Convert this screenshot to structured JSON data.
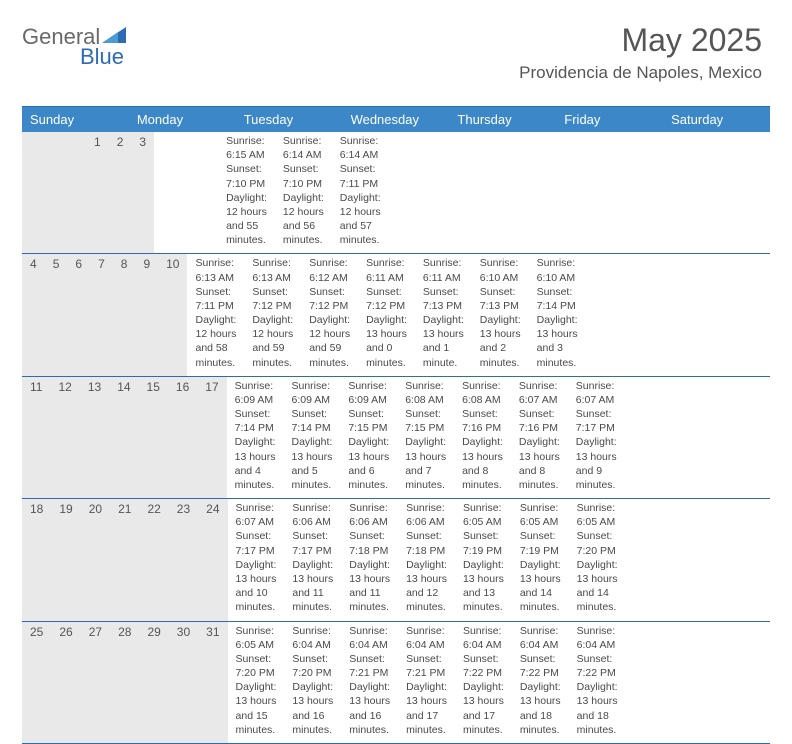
{
  "logo": {
    "text1": "General",
    "text2": "Blue"
  },
  "title": {
    "month": "May 2025",
    "location": "Providencia de Napoles, Mexico"
  },
  "colors": {
    "header_bg": "#3c87c8",
    "header_text": "#ffffff",
    "daynum_bg": "#e9e9e9",
    "border": "#2d6bb5",
    "logo_gray": "#6a6a6a",
    "logo_blue": "#2d6bb5",
    "text_gray": "#555555",
    "details_text": "#4a4a4a",
    "background": "#ffffff"
  },
  "typography": {
    "month_fontsize": 32,
    "location_fontsize": 17,
    "logo_fontsize": 22,
    "dayheader_fontsize": 13,
    "daynum_fontsize": 12,
    "details_fontsize": 10.5
  },
  "dayHeaders": [
    "Sunday",
    "Monday",
    "Tuesday",
    "Wednesday",
    "Thursday",
    "Friday",
    "Saturday"
  ],
  "weeks": [
    [
      {
        "n": "",
        "sunrise": "",
        "sunset": "",
        "daylight": ""
      },
      {
        "n": "",
        "sunrise": "",
        "sunset": "",
        "daylight": ""
      },
      {
        "n": "",
        "sunrise": "",
        "sunset": "",
        "daylight": ""
      },
      {
        "n": "",
        "sunrise": "",
        "sunset": "",
        "daylight": ""
      },
      {
        "n": "1",
        "sunrise": "Sunrise: 6:15 AM",
        "sunset": "Sunset: 7:10 PM",
        "daylight": "Daylight: 12 hours and 55 minutes."
      },
      {
        "n": "2",
        "sunrise": "Sunrise: 6:14 AM",
        "sunset": "Sunset: 7:10 PM",
        "daylight": "Daylight: 12 hours and 56 minutes."
      },
      {
        "n": "3",
        "sunrise": "Sunrise: 6:14 AM",
        "sunset": "Sunset: 7:11 PM",
        "daylight": "Daylight: 12 hours and 57 minutes."
      }
    ],
    [
      {
        "n": "4",
        "sunrise": "Sunrise: 6:13 AM",
        "sunset": "Sunset: 7:11 PM",
        "daylight": "Daylight: 12 hours and 58 minutes."
      },
      {
        "n": "5",
        "sunrise": "Sunrise: 6:13 AM",
        "sunset": "Sunset: 7:12 PM",
        "daylight": "Daylight: 12 hours and 59 minutes."
      },
      {
        "n": "6",
        "sunrise": "Sunrise: 6:12 AM",
        "sunset": "Sunset: 7:12 PM",
        "daylight": "Daylight: 12 hours and 59 minutes."
      },
      {
        "n": "7",
        "sunrise": "Sunrise: 6:11 AM",
        "sunset": "Sunset: 7:12 PM",
        "daylight": "Daylight: 13 hours and 0 minutes."
      },
      {
        "n": "8",
        "sunrise": "Sunrise: 6:11 AM",
        "sunset": "Sunset: 7:13 PM",
        "daylight": "Daylight: 13 hours and 1 minute."
      },
      {
        "n": "9",
        "sunrise": "Sunrise: 6:10 AM",
        "sunset": "Sunset: 7:13 PM",
        "daylight": "Daylight: 13 hours and 2 minutes."
      },
      {
        "n": "10",
        "sunrise": "Sunrise: 6:10 AM",
        "sunset": "Sunset: 7:14 PM",
        "daylight": "Daylight: 13 hours and 3 minutes."
      }
    ],
    [
      {
        "n": "11",
        "sunrise": "Sunrise: 6:09 AM",
        "sunset": "Sunset: 7:14 PM",
        "daylight": "Daylight: 13 hours and 4 minutes."
      },
      {
        "n": "12",
        "sunrise": "Sunrise: 6:09 AM",
        "sunset": "Sunset: 7:14 PM",
        "daylight": "Daylight: 13 hours and 5 minutes."
      },
      {
        "n": "13",
        "sunrise": "Sunrise: 6:09 AM",
        "sunset": "Sunset: 7:15 PM",
        "daylight": "Daylight: 13 hours and 6 minutes."
      },
      {
        "n": "14",
        "sunrise": "Sunrise: 6:08 AM",
        "sunset": "Sunset: 7:15 PM",
        "daylight": "Daylight: 13 hours and 7 minutes."
      },
      {
        "n": "15",
        "sunrise": "Sunrise: 6:08 AM",
        "sunset": "Sunset: 7:16 PM",
        "daylight": "Daylight: 13 hours and 8 minutes."
      },
      {
        "n": "16",
        "sunrise": "Sunrise: 6:07 AM",
        "sunset": "Sunset: 7:16 PM",
        "daylight": "Daylight: 13 hours and 8 minutes."
      },
      {
        "n": "17",
        "sunrise": "Sunrise: 6:07 AM",
        "sunset": "Sunset: 7:17 PM",
        "daylight": "Daylight: 13 hours and 9 minutes."
      }
    ],
    [
      {
        "n": "18",
        "sunrise": "Sunrise: 6:07 AM",
        "sunset": "Sunset: 7:17 PM",
        "daylight": "Daylight: 13 hours and 10 minutes."
      },
      {
        "n": "19",
        "sunrise": "Sunrise: 6:06 AM",
        "sunset": "Sunset: 7:17 PM",
        "daylight": "Daylight: 13 hours and 11 minutes."
      },
      {
        "n": "20",
        "sunrise": "Sunrise: 6:06 AM",
        "sunset": "Sunset: 7:18 PM",
        "daylight": "Daylight: 13 hours and 11 minutes."
      },
      {
        "n": "21",
        "sunrise": "Sunrise: 6:06 AM",
        "sunset": "Sunset: 7:18 PM",
        "daylight": "Daylight: 13 hours and 12 minutes."
      },
      {
        "n": "22",
        "sunrise": "Sunrise: 6:05 AM",
        "sunset": "Sunset: 7:19 PM",
        "daylight": "Daylight: 13 hours and 13 minutes."
      },
      {
        "n": "23",
        "sunrise": "Sunrise: 6:05 AM",
        "sunset": "Sunset: 7:19 PM",
        "daylight": "Daylight: 13 hours and 14 minutes."
      },
      {
        "n": "24",
        "sunrise": "Sunrise: 6:05 AM",
        "sunset": "Sunset: 7:20 PM",
        "daylight": "Daylight: 13 hours and 14 minutes."
      }
    ],
    [
      {
        "n": "25",
        "sunrise": "Sunrise: 6:05 AM",
        "sunset": "Sunset: 7:20 PM",
        "daylight": "Daylight: 13 hours and 15 minutes."
      },
      {
        "n": "26",
        "sunrise": "Sunrise: 6:04 AM",
        "sunset": "Sunset: 7:20 PM",
        "daylight": "Daylight: 13 hours and 16 minutes."
      },
      {
        "n": "27",
        "sunrise": "Sunrise: 6:04 AM",
        "sunset": "Sunset: 7:21 PM",
        "daylight": "Daylight: 13 hours and 16 minutes."
      },
      {
        "n": "28",
        "sunrise": "Sunrise: 6:04 AM",
        "sunset": "Sunset: 7:21 PM",
        "daylight": "Daylight: 13 hours and 17 minutes."
      },
      {
        "n": "29",
        "sunrise": "Sunrise: 6:04 AM",
        "sunset": "Sunset: 7:22 PM",
        "daylight": "Daylight: 13 hours and 17 minutes."
      },
      {
        "n": "30",
        "sunrise": "Sunrise: 6:04 AM",
        "sunset": "Sunset: 7:22 PM",
        "daylight": "Daylight: 13 hours and 18 minutes."
      },
      {
        "n": "31",
        "sunrise": "Sunrise: 6:04 AM",
        "sunset": "Sunset: 7:22 PM",
        "daylight": "Daylight: 13 hours and 18 minutes."
      }
    ]
  ]
}
